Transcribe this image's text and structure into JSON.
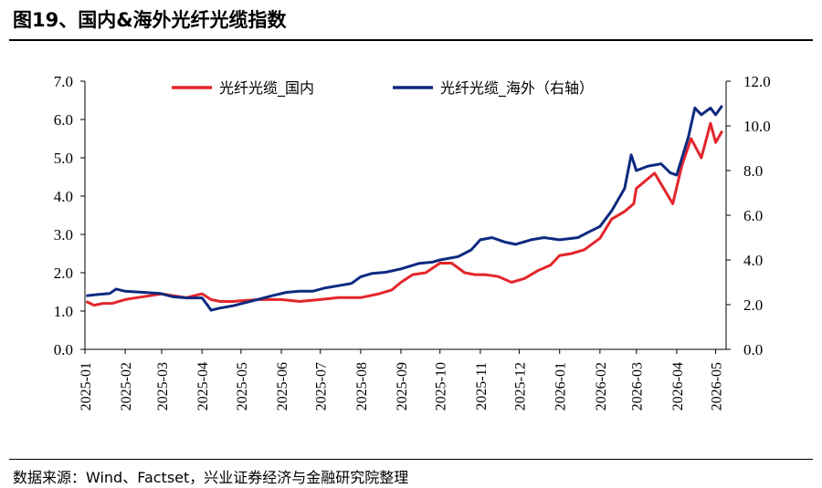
{
  "figure": {
    "title": "图19、国内&海外光纤光缆指数",
    "source": "数据来源：Wind、Factset，兴业证券经济与金融研究院整理"
  },
  "colors": {
    "domestic": "#e3262b",
    "overseas": "#0d2a80"
  },
  "chart_data": {
    "type": "line",
    "title": "",
    "xlabel": "",
    "ylabel": "",
    "y_left": {
      "ylim": [
        0,
        7
      ],
      "ticks": [
        "0.0",
        "1.0",
        "2.0",
        "3.0",
        "4.0",
        "5.0",
        "6.0",
        "7.0"
      ]
    },
    "y_right": {
      "ylim": [
        0,
        12
      ],
      "ticks": [
        "0.0",
        "2.0",
        "4.0",
        "6.0",
        "8.0",
        "10.0",
        "12.0"
      ]
    },
    "x_ticks": [
      "2025-01",
      "2025-02",
      "2025-03",
      "2025-04",
      "2025-05",
      "2025-06",
      "2025-07",
      "2025-08",
      "2025-09",
      "2025-10",
      "2025-11",
      "2025-12",
      "2026-01",
      "2026-02",
      "2026-03",
      "2026-04",
      "2026-05"
    ],
    "legend_position": "top",
    "grid": false,
    "series": [
      {
        "name": "光纤光缆_国内",
        "axis": "left",
        "points": [
          [
            "2025-01-02",
            1.25
          ],
          [
            "2025-01-08",
            1.15
          ],
          [
            "2025-01-15",
            1.2
          ],
          [
            "2025-01-22",
            1.2
          ],
          [
            "2025-02-01",
            1.3
          ],
          [
            "2025-02-10",
            1.35
          ],
          [
            "2025-02-20",
            1.4
          ],
          [
            "2025-03-01",
            1.45
          ],
          [
            "2025-03-10",
            1.4
          ],
          [
            "2025-03-20",
            1.35
          ],
          [
            "2025-04-01",
            1.45
          ],
          [
            "2025-04-08",
            1.3
          ],
          [
            "2025-04-15",
            1.25
          ],
          [
            "2025-04-25",
            1.25
          ],
          [
            "2025-05-01",
            1.27
          ],
          [
            "2025-05-15",
            1.3
          ],
          [
            "2025-06-01",
            1.3
          ],
          [
            "2025-06-15",
            1.25
          ],
          [
            "2025-07-01",
            1.3
          ],
          [
            "2025-07-15",
            1.35
          ],
          [
            "2025-08-01",
            1.35
          ],
          [
            "2025-08-15",
            1.45
          ],
          [
            "2025-08-25",
            1.55
          ],
          [
            "2025-09-01",
            1.75
          ],
          [
            "2025-09-10",
            1.95
          ],
          [
            "2025-09-20",
            2.0
          ],
          [
            "2025-10-01",
            2.25
          ],
          [
            "2025-10-10",
            2.25
          ],
          [
            "2025-10-20",
            2.0
          ],
          [
            "2025-10-28",
            1.95
          ],
          [
            "2025-11-05",
            1.95
          ],
          [
            "2025-11-15",
            1.9
          ],
          [
            "2025-11-25",
            1.75
          ],
          [
            "2025-12-05",
            1.85
          ],
          [
            "2025-12-15",
            2.05
          ],
          [
            "2025-12-25",
            2.2
          ],
          [
            "2026-01-01",
            2.45
          ],
          [
            "2026-01-10",
            2.5
          ],
          [
            "2026-01-20",
            2.6
          ],
          [
            "2026-02-01",
            2.9
          ],
          [
            "2026-02-10",
            3.4
          ],
          [
            "2026-02-20",
            3.6
          ],
          [
            "2026-02-27",
            3.8
          ],
          [
            "2026-03-01",
            4.2
          ],
          [
            "2026-03-08",
            4.4
          ],
          [
            "2026-03-15",
            4.6
          ],
          [
            "2026-03-22",
            4.2
          ],
          [
            "2026-03-29",
            3.8
          ],
          [
            "2026-04-05",
            4.8
          ],
          [
            "2026-04-12",
            5.5
          ],
          [
            "2026-04-20",
            5.0
          ],
          [
            "2026-04-27",
            5.9
          ],
          [
            "2026-05-01",
            5.4
          ],
          [
            "2026-05-06",
            5.7
          ]
        ]
      },
      {
        "name": "光纤光缆_海外（右轴）",
        "axis": "right",
        "points": [
          [
            "2025-01-02",
            2.4
          ],
          [
            "2025-01-10",
            2.45
          ],
          [
            "2025-01-20",
            2.5
          ],
          [
            "2025-01-25",
            2.7
          ],
          [
            "2025-02-01",
            2.6
          ],
          [
            "2025-02-15",
            2.55
          ],
          [
            "2025-02-28",
            2.5
          ],
          [
            "2025-03-10",
            2.35
          ],
          [
            "2025-03-20",
            2.3
          ],
          [
            "2025-04-01",
            2.3
          ],
          [
            "2025-04-05",
            2.0
          ],
          [
            "2025-04-08",
            1.75
          ],
          [
            "2025-04-15",
            1.85
          ],
          [
            "2025-04-25",
            1.95
          ],
          [
            "2025-05-05",
            2.1
          ],
          [
            "2025-05-15",
            2.25
          ],
          [
            "2025-05-25",
            2.4
          ],
          [
            "2025-06-05",
            2.55
          ],
          [
            "2025-06-15",
            2.6
          ],
          [
            "2025-06-25",
            2.6
          ],
          [
            "2025-07-05",
            2.75
          ],
          [
            "2025-07-15",
            2.85
          ],
          [
            "2025-07-25",
            2.95
          ],
          [
            "2025-08-01",
            3.25
          ],
          [
            "2025-08-10",
            3.4
          ],
          [
            "2025-08-20",
            3.45
          ],
          [
            "2025-09-01",
            3.6
          ],
          [
            "2025-09-15",
            3.85
          ],
          [
            "2025-09-25",
            3.9
          ],
          [
            "2025-10-01",
            4.0
          ],
          [
            "2025-10-15",
            4.15
          ],
          [
            "2025-10-25",
            4.45
          ],
          [
            "2025-11-01",
            4.9
          ],
          [
            "2025-11-10",
            5.0
          ],
          [
            "2025-11-20",
            4.8
          ],
          [
            "2025-11-28",
            4.7
          ],
          [
            "2025-12-10",
            4.9
          ],
          [
            "2025-12-20",
            5.0
          ],
          [
            "2026-01-01",
            4.9
          ],
          [
            "2026-01-15",
            5.0
          ],
          [
            "2026-01-25",
            5.3
          ],
          [
            "2026-02-01",
            5.5
          ],
          [
            "2026-02-10",
            6.2
          ],
          [
            "2026-02-20",
            7.2
          ],
          [
            "2026-02-25",
            8.7
          ],
          [
            "2026-03-01",
            8.0
          ],
          [
            "2026-03-10",
            8.2
          ],
          [
            "2026-03-20",
            8.3
          ],
          [
            "2026-03-27",
            7.9
          ],
          [
            "2026-04-01",
            7.8
          ],
          [
            "2026-04-10",
            9.5
          ],
          [
            "2026-04-15",
            10.8
          ],
          [
            "2026-04-20",
            10.5
          ],
          [
            "2026-04-27",
            10.8
          ],
          [
            "2026-05-01",
            10.5
          ],
          [
            "2026-05-06",
            10.9
          ]
        ]
      }
    ]
  }
}
